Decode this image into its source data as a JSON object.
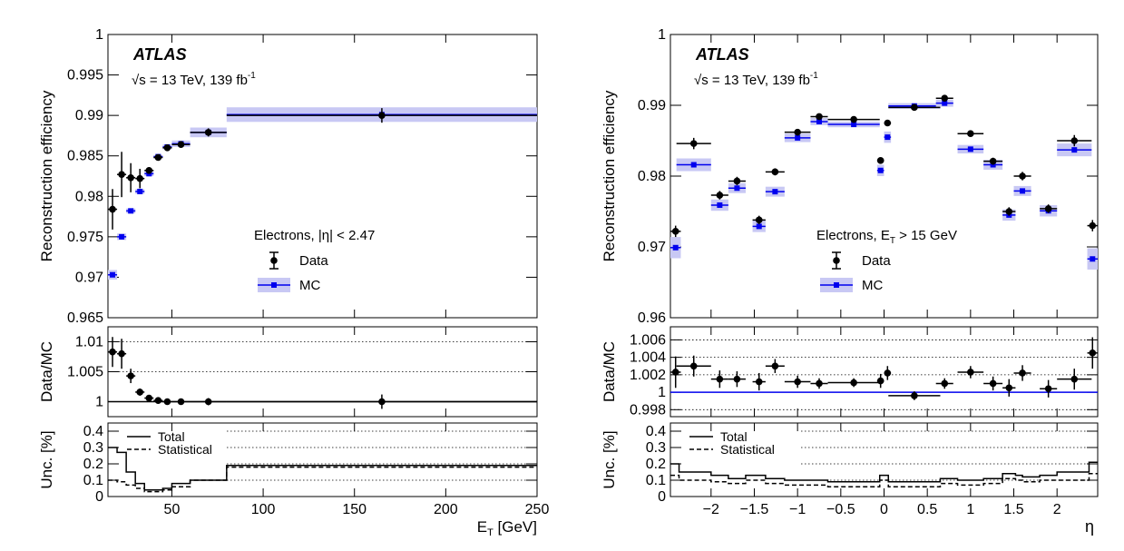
{
  "chart_data": [
    {
      "type": "scatter",
      "experiment": "ATLAS",
      "energy_lumi": "√s = 13 TeV, 139 fb",
      "lumi_superscript": "-1",
      "selection": "Electrons, |η| < 2.47",
      "legend": [
        {
          "label": "Data",
          "marker": "point"
        },
        {
          "label": "MC",
          "marker": "band"
        }
      ],
      "legend_position": "center-right",
      "colors": {
        "data": "#000000",
        "mc": "#0000ee",
        "mc_band": "#c8c8f4"
      },
      "xlabel": "E",
      "xlabel_sub": "T",
      "xlabel_unit": "[GeV]",
      "xlim": [
        15,
        250
      ],
      "xticks": [
        50,
        100,
        150,
        200,
        250
      ],
      "x_tick_labels": [
        "50",
        "100",
        "150",
        "200",
        "250"
      ],
      "main": {
        "ylabel": "Reconstruction efficiency",
        "ylim": [
          0.965,
          1.0
        ],
        "yticks": [
          0.965,
          0.97,
          0.975,
          0.98,
          0.985,
          0.99,
          0.995,
          1
        ],
        "y_tick_labels": [
          "0.965",
          "0.97",
          "0.975",
          "0.98",
          "0.985",
          "0.99",
          "0.995",
          "1"
        ],
        "data": [
          {
            "x": 17.5,
            "xerr": 2.5,
            "y": 0.9784,
            "yerr": 0.0025
          },
          {
            "x": 22.5,
            "xerr": 2.5,
            "y": 0.9827,
            "yerr": 0.0028
          },
          {
            "x": 27.5,
            "xerr": 2.5,
            "y": 0.9823,
            "yerr": 0.0018
          },
          {
            "x": 32.5,
            "xerr": 2.5,
            "y": 0.9822,
            "yerr": 0.0012
          },
          {
            "x": 37.5,
            "xerr": 2.5,
            "y": 0.9832,
            "yerr": 0.0004
          },
          {
            "x": 42.5,
            "xerr": 2.5,
            "y": 0.9848,
            "yerr": 0.0002
          },
          {
            "x": 47.5,
            "xerr": 2.5,
            "y": 0.986,
            "yerr": 0.0002
          },
          {
            "x": 55,
            "xerr": 5,
            "y": 0.9864,
            "yerr": 0.0003
          },
          {
            "x": 70,
            "xerr": 10,
            "y": 0.9879,
            "yerr": 0.0005
          },
          {
            "x": 165,
            "xerr": 85,
            "y": 0.99,
            "yerr": 0.0009
          }
        ],
        "mc": [
          {
            "x": 17.5,
            "xerr": 2.5,
            "y": 0.9703,
            "yerr": 0.0006
          },
          {
            "x": 22.5,
            "xerr": 2.5,
            "y": 0.975,
            "yerr": 0.0004
          },
          {
            "x": 27.5,
            "xerr": 2.5,
            "y": 0.9782,
            "yerr": 0.0003
          },
          {
            "x": 32.5,
            "xerr": 2.5,
            "y": 0.9806,
            "yerr": 0.0003
          },
          {
            "x": 37.5,
            "xerr": 2.5,
            "y": 0.9828,
            "yerr": 0.0003
          },
          {
            "x": 42.5,
            "xerr": 2.5,
            "y": 0.9849,
            "yerr": 0.0002
          },
          {
            "x": 47.5,
            "xerr": 2.5,
            "y": 0.9861,
            "yerr": 0.0003
          },
          {
            "x": 55,
            "xerr": 5,
            "y": 0.9865,
            "yerr": 0.0004
          },
          {
            "x": 70,
            "xerr": 10,
            "y": 0.9879,
            "yerr": 0.0006
          },
          {
            "x": 165,
            "xerr": 85,
            "y": 0.9901,
            "yerr": 0.0009
          }
        ]
      },
      "ratio": {
        "ylabel": "Data/MC",
        "ylim": [
          0.9975,
          1.0125
        ],
        "yticks": [
          1,
          1.005,
          1.01
        ],
        "y_tick_labels": [
          "1",
          "1.005",
          "1.01"
        ],
        "reference": 1,
        "points": [
          {
            "x": 17.5,
            "xerr": 2.5,
            "y": 1.0083,
            "yerr": 0.0025
          },
          {
            "x": 22.5,
            "xerr": 2.5,
            "y": 1.008,
            "yerr": 0.0025
          },
          {
            "x": 27.5,
            "xerr": 2.5,
            "y": 1.0043,
            "yerr": 0.0012
          },
          {
            "x": 32.5,
            "xerr": 2.5,
            "y": 1.0016,
            "yerr": 0.0006
          },
          {
            "x": 37.5,
            "xerr": 2.5,
            "y": 1.0006,
            "yerr": 0.0003
          },
          {
            "x": 42.5,
            "xerr": 2.5,
            "y": 1.0002,
            "yerr": 0.0002
          },
          {
            "x": 47.5,
            "xerr": 2.5,
            "y": 1.0,
            "yerr": 0.0002
          },
          {
            "x": 55,
            "xerr": 5,
            "y": 1.0,
            "yerr": 0.0003
          },
          {
            "x": 70,
            "xerr": 10,
            "y": 1.0,
            "yerr": 0.0006
          },
          {
            "x": 165,
            "xerr": 85,
            "y": 1.0,
            "yerr": 0.0012
          }
        ]
      },
      "uncertainty": {
        "ylabel": "Unc. [%]",
        "ylim": [
          0,
          0.45
        ],
        "yticks": [
          0,
          0.1,
          0.2,
          0.3,
          0.4
        ],
        "y_tick_labels": [
          "0",
          "0.1",
          "0.2",
          "0.3",
          "0.4"
        ],
        "legend": [
          "Total",
          "Statistical"
        ],
        "edges": [
          15,
          20,
          25,
          30,
          35,
          40,
          45,
          50,
          60,
          80,
          250
        ],
        "total": [
          0.3,
          0.27,
          0.15,
          0.08,
          0.04,
          0.04,
          0.05,
          0.08,
          0.1,
          0.19
        ],
        "statistical": [
          0.1,
          0.09,
          0.07,
          0.05,
          0.03,
          0.03,
          0.04,
          0.06,
          0.1,
          0.18
        ]
      }
    },
    {
      "type": "scatter",
      "experiment": "ATLAS",
      "energy_lumi": "√s = 13 TeV, 139 fb",
      "lumi_superscript": "-1",
      "selection": "Electrons, E",
      "selection_sub": "T",
      "selection_tail": " > 15 GeV",
      "legend": [
        {
          "label": "Data",
          "marker": "point"
        },
        {
          "label": "MC",
          "marker": "band"
        }
      ],
      "legend_position": "center",
      "colors": {
        "data": "#000000",
        "mc": "#0000ee",
        "mc_band": "#c8c8f4"
      },
      "xlabel": "η",
      "xlim": [
        -2.47,
        2.47
      ],
      "xticks": [
        -2,
        -1.5,
        -1,
        -0.5,
        0,
        0.5,
        1,
        1.5,
        2
      ],
      "x_tick_labels": [
        "−2",
        "−1.5",
        "−1",
        "−0.5",
        "0",
        "0.5",
        "1",
        "1.5",
        "2"
      ],
      "main": {
        "ylabel": "Reconstruction efficiency",
        "ylim": [
          0.96,
          1.0
        ],
        "yticks": [
          0.96,
          0.97,
          0.98,
          0.99,
          1
        ],
        "y_tick_labels": [
          "0.96",
          "0.97",
          "0.98",
          "0.99",
          "1"
        ],
        "data": [
          {
            "x": -2.41,
            "xerr": 0.06,
            "y": 0.9722,
            "yerr": 0.0008
          },
          {
            "x": -2.2,
            "xerr": 0.2,
            "y": 0.9846,
            "yerr": 0.0008
          },
          {
            "x": -1.9,
            "xerr": 0.1,
            "y": 0.9773,
            "yerr": 0.0006
          },
          {
            "x": -1.7,
            "xerr": 0.1,
            "y": 0.9793,
            "yerr": 0.0006
          },
          {
            "x": -1.445,
            "xerr": 0.075,
            "y": 0.9738,
            "yerr": 0.0006
          },
          {
            "x": -1.26,
            "xerr": 0.11,
            "y": 0.9806,
            "yerr": 0.0005
          },
          {
            "x": -1.0,
            "xerr": 0.15,
            "y": 0.9862,
            "yerr": 0.0004
          },
          {
            "x": -0.75,
            "xerr": 0.1,
            "y": 0.9884,
            "yerr": 0.0004
          },
          {
            "x": -0.35,
            "xerr": 0.3,
            "y": 0.988,
            "yerr": 0.0003
          },
          {
            "x": -0.04,
            "xerr": 0.04,
            "y": 0.9822,
            "yerr": 0.0003
          },
          {
            "x": 0.04,
            "xerr": 0.04,
            "y": 0.9875,
            "yerr": 0.0003
          },
          {
            "x": 0.35,
            "xerr": 0.3,
            "y": 0.9897,
            "yerr": 0.0003
          },
          {
            "x": 0.7,
            "xerr": 0.1,
            "y": 0.991,
            "yerr": 0.0004
          },
          {
            "x": 1.0,
            "xerr": 0.15,
            "y": 0.986,
            "yerr": 0.0004
          },
          {
            "x": 1.26,
            "xerr": 0.11,
            "y": 0.9821,
            "yerr": 0.0005
          },
          {
            "x": 1.445,
            "xerr": 0.075,
            "y": 0.975,
            "yerr": 0.0006
          },
          {
            "x": 1.6,
            "xerr": 0.1,
            "y": 0.98,
            "yerr": 0.0006
          },
          {
            "x": 1.9,
            "xerr": 0.1,
            "y": 0.9754,
            "yerr": 0.0006
          },
          {
            "x": 2.2,
            "xerr": 0.2,
            "y": 0.985,
            "yerr": 0.0008
          },
          {
            "x": 2.41,
            "xerr": 0.06,
            "y": 0.973,
            "yerr": 0.0008
          }
        ],
        "mc": [
          {
            "x": -2.41,
            "xerr": 0.06,
            "y": 0.9699,
            "yerr": 0.0015
          },
          {
            "x": -2.2,
            "xerr": 0.2,
            "y": 0.9816,
            "yerr": 0.0009
          },
          {
            "x": -1.9,
            "xerr": 0.1,
            "y": 0.9759,
            "yerr": 0.0008
          },
          {
            "x": -1.7,
            "xerr": 0.1,
            "y": 0.9783,
            "yerr": 0.0007
          },
          {
            "x": -1.445,
            "xerr": 0.075,
            "y": 0.9729,
            "yerr": 0.0008
          },
          {
            "x": -1.26,
            "xerr": 0.11,
            "y": 0.9778,
            "yerr": 0.0007
          },
          {
            "x": -1.0,
            "xerr": 0.15,
            "y": 0.9854,
            "yerr": 0.0006
          },
          {
            "x": -0.75,
            "xerr": 0.1,
            "y": 0.9877,
            "yerr": 0.0005
          },
          {
            "x": -0.35,
            "xerr": 0.3,
            "y": 0.9873,
            "yerr": 0.0004
          },
          {
            "x": -0.04,
            "xerr": 0.04,
            "y": 0.9808,
            "yerr": 0.0008
          },
          {
            "x": 0.04,
            "xerr": 0.04,
            "y": 0.9855,
            "yerr": 0.0008
          },
          {
            "x": 0.35,
            "xerr": 0.3,
            "y": 0.9899,
            "yerr": 0.0004
          },
          {
            "x": 0.7,
            "xerr": 0.1,
            "y": 0.9903,
            "yerr": 0.0005
          },
          {
            "x": 1.0,
            "xerr": 0.15,
            "y": 0.9838,
            "yerr": 0.0006
          },
          {
            "x": 1.26,
            "xerr": 0.11,
            "y": 0.9816,
            "yerr": 0.0007
          },
          {
            "x": 1.445,
            "xerr": 0.075,
            "y": 0.9745,
            "yerr": 0.0008
          },
          {
            "x": 1.6,
            "xerr": 0.1,
            "y": 0.9779,
            "yerr": 0.0007
          },
          {
            "x": 1.9,
            "xerr": 0.1,
            "y": 0.9751,
            "yerr": 0.0008
          },
          {
            "x": 2.2,
            "xerr": 0.2,
            "y": 0.9837,
            "yerr": 0.0009
          },
          {
            "x": 2.41,
            "xerr": 0.06,
            "y": 0.9683,
            "yerr": 0.0015
          }
        ]
      },
      "ratio": {
        "ylabel": "Data/MC",
        "ylim": [
          0.9972,
          1.0075
        ],
        "yticks": [
          0.998,
          1,
          1.002,
          1.004,
          1.006
        ],
        "y_tick_labels": [
          "0.998",
          "1",
          "1.002",
          "1.004",
          "1.006"
        ],
        "reference": 1,
        "points": [
          {
            "x": -2.41,
            "xerr": 0.06,
            "y": 1.0023,
            "yerr": 0.0018
          },
          {
            "x": -2.2,
            "xerr": 0.2,
            "y": 1.003,
            "yerr": 0.0012
          },
          {
            "x": -1.9,
            "xerr": 0.1,
            "y": 1.0015,
            "yerr": 0.001
          },
          {
            "x": -1.7,
            "xerr": 0.1,
            "y": 1.0015,
            "yerr": 0.0009
          },
          {
            "x": -1.445,
            "xerr": 0.075,
            "y": 1.0012,
            "yerr": 0.001
          },
          {
            "x": -1.26,
            "xerr": 0.11,
            "y": 1.003,
            "yerr": 0.0008
          },
          {
            "x": -1.0,
            "xerr": 0.15,
            "y": 1.0012,
            "yerr": 0.0007
          },
          {
            "x": -0.75,
            "xerr": 0.1,
            "y": 1.001,
            "yerr": 0.0006
          },
          {
            "x": -0.35,
            "xerr": 0.3,
            "y": 1.0011,
            "yerr": 0.0005
          },
          {
            "x": -0.04,
            "xerr": 0.04,
            "y": 1.0013,
            "yerr": 0.0008
          },
          {
            "x": 0.04,
            "xerr": 0.04,
            "y": 1.0022,
            "yerr": 0.0008
          },
          {
            "x": 0.35,
            "xerr": 0.3,
            "y": 0.9996,
            "yerr": 0.0005
          },
          {
            "x": 0.7,
            "xerr": 0.1,
            "y": 1.001,
            "yerr": 0.0006
          },
          {
            "x": 1.0,
            "xerr": 0.15,
            "y": 1.0023,
            "yerr": 0.0007
          },
          {
            "x": 1.26,
            "xerr": 0.11,
            "y": 1.001,
            "yerr": 0.0008
          },
          {
            "x": 1.445,
            "xerr": 0.075,
            "y": 1.0005,
            "yerr": 0.001
          },
          {
            "x": 1.6,
            "xerr": 0.1,
            "y": 1.0022,
            "yerr": 0.0009
          },
          {
            "x": 1.9,
            "xerr": 0.1,
            "y": 1.0004,
            "yerr": 0.001
          },
          {
            "x": 2.2,
            "xerr": 0.2,
            "y": 1.0015,
            "yerr": 0.0012
          },
          {
            "x": 2.41,
            "xerr": 0.06,
            "y": 1.0045,
            "yerr": 0.0018
          }
        ]
      },
      "uncertainty": {
        "ylabel": "Unc. [%]",
        "ylim": [
          0,
          0.45
        ],
        "yticks": [
          0,
          0.1,
          0.2,
          0.3,
          0.4
        ],
        "y_tick_labels": [
          "0",
          "0.1",
          "0.2",
          "0.3",
          "0.4"
        ],
        "legend": [
          "Total",
          "Statistical"
        ],
        "edges": [
          -2.47,
          -2.37,
          -2.0,
          -1.8,
          -1.6,
          -1.52,
          -1.37,
          -1.15,
          -0.85,
          -0.65,
          -0.05,
          0.05,
          0.65,
          0.85,
          1.15,
          1.37,
          1.52,
          1.6,
          1.8,
          2.0,
          2.37,
          2.47
        ],
        "total": [
          0.2,
          0.15,
          0.13,
          0.11,
          0.13,
          0.13,
          0.11,
          0.1,
          0.1,
          0.09,
          0.13,
          0.09,
          0.11,
          0.1,
          0.11,
          0.14,
          0.13,
          0.12,
          0.13,
          0.15,
          0.21
        ],
        "statistical": [
          0.13,
          0.1,
          0.09,
          0.08,
          0.1,
          0.1,
          0.08,
          0.07,
          0.07,
          0.06,
          0.1,
          0.06,
          0.08,
          0.07,
          0.08,
          0.11,
          0.1,
          0.09,
          0.1,
          0.1,
          0.14
        ]
      }
    }
  ]
}
